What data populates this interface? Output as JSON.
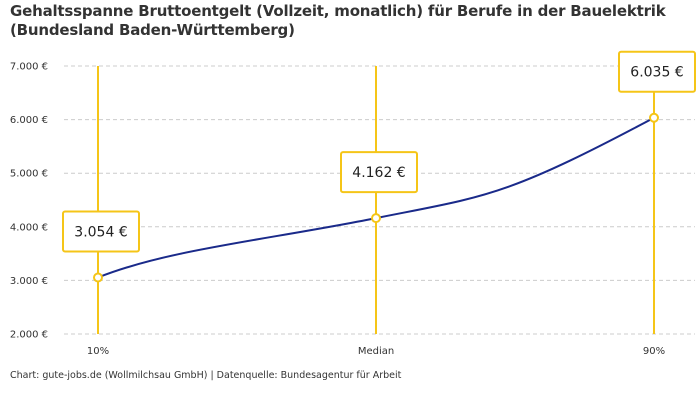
{
  "chart_data": {
    "type": "line",
    "title": "Gehaltsspanne Bruttoentgelt (Vollzeit, monatlich) für Berufe in der Bauelektrik (Bundesland Baden-Württemberg)",
    "categories": [
      "10%",
      "Median",
      "90%"
    ],
    "values": [
      3054,
      4162,
      6035
    ],
    "data_labels": [
      "3.054 €",
      "4.162 €",
      "6.035 €"
    ],
    "ylim": [
      2000,
      7000
    ],
    "yticks": [
      2000,
      3000,
      4000,
      5000,
      6000,
      7000
    ],
    "ytick_labels": [
      "2.000 €",
      "3.000 €",
      "4.000 €",
      "5.000 €",
      "6.000 €",
      "7.000 €"
    ],
    "grid": "horizontal dashed",
    "colors": {
      "line": "#1a2a8a",
      "marker": "#f5c518",
      "grid": "#cccccc"
    }
  },
  "footer": "Chart: gute-jobs.de (Wollmilchsau GmbH) | Datenquelle: Bundesagentur für Arbeit"
}
